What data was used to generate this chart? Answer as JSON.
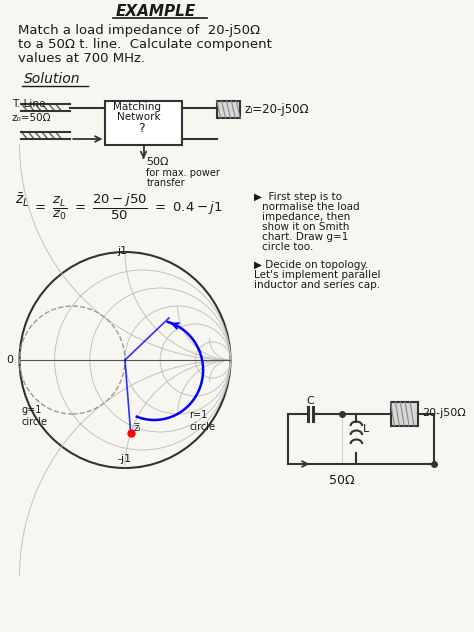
{
  "bg_color": "#f7f6f0",
  "title": "EXAMPLE",
  "line1": "Match a load impedance of  20-j50Ω",
  "line2": "to a 50Ω t. line.  Calculate component",
  "line3": "values at 700 MHz.",
  "solution_label": "Solution",
  "tline_label": "T. Line",
  "z0_label": "z₀=50Ω",
  "mn_label1": "Matching",
  "mn_label2": "Network",
  "mn_label3": "?",
  "zl_label": "zₗ=20-j50Ω",
  "z50_label": "50Ω",
  "maxpower_label1": "for max. power",
  "maxpower_label2": "transfer",
  "smith_j1_label": "j1",
  "smith_neg_j1_label": "-j1",
  "smith_0_label": "0",
  "smith_g1_label": "g=1\ncircle",
  "smith_r1_label": "r=1\ncircle",
  "smith_zl_label": "z̅ₗ",
  "note1_line1": "▶  First step is to",
  "note1_line2": "normalise the load",
  "note1_line3": "impedance, then",
  "note1_line4": "show it on Smith",
  "note1_line5": "chart. Draw g=1",
  "note1_line6": "circle too.",
  "note2_line1": "▶ Decide on topology.",
  "note2_line2": "Let's implement parallel",
  "note2_line3": "inductor and series cap.",
  "circuit_zl": "20-j50Ω",
  "circuit_50": "50Ω",
  "cap_label": "C",
  "ind_label": "L"
}
